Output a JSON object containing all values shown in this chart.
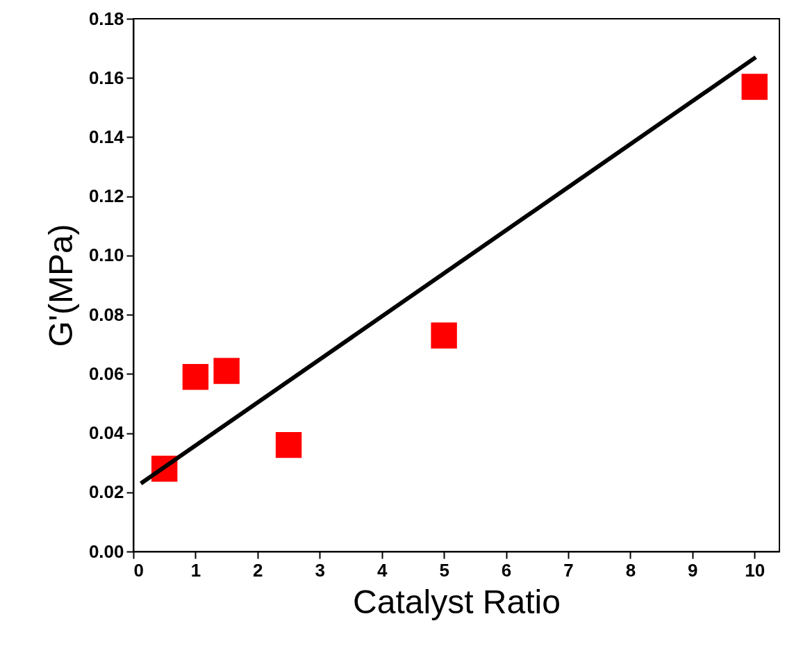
{
  "chart_data": {
    "type": "scatter",
    "xlabel": "Catalyst Ratio",
    "ylabel": "G'(MPa)",
    "series": [
      {
        "color": "#ff0000",
        "marker": "square",
        "x": [
          0.5,
          1,
          1.5,
          2.5,
          5,
          10
        ],
        "values": [
          0.028,
          0.059,
          0.061,
          0.036,
          0.073,
          0.157
        ]
      },
      {
        "type": "line",
        "color": "#000000",
        "marker": "none",
        "line_style": "solid",
        "x": [
          0.12,
          10.02
        ],
        "values": [
          0.023,
          0.167
        ]
      }
    ],
    "xlim": [
      0,
      10.4
    ],
    "xticks": [
      0,
      1,
      2,
      3,
      4,
      5,
      6,
      7,
      8,
      9,
      10
    ],
    "ylim": [
      0,
      0.18
    ],
    "yticks": [
      {
        "value": 0,
        "label": "0.00"
      },
      {
        "value": 0.02,
        "label": "0.02"
      },
      {
        "value": 0.04,
        "label": "0.04"
      },
      {
        "value": 0.06,
        "label": "0.06"
      },
      {
        "value": 0.08,
        "label": "0.08"
      },
      {
        "value": 0.1,
        "label": "0.10"
      },
      {
        "value": 0.12,
        "label": "0.12"
      },
      {
        "value": 0.14,
        "label": "0.14"
      },
      {
        "value": 0.16,
        "label": "0.16"
      },
      {
        "value": 0.18,
        "label": "0.18"
      }
    ],
    "grid": false
  }
}
